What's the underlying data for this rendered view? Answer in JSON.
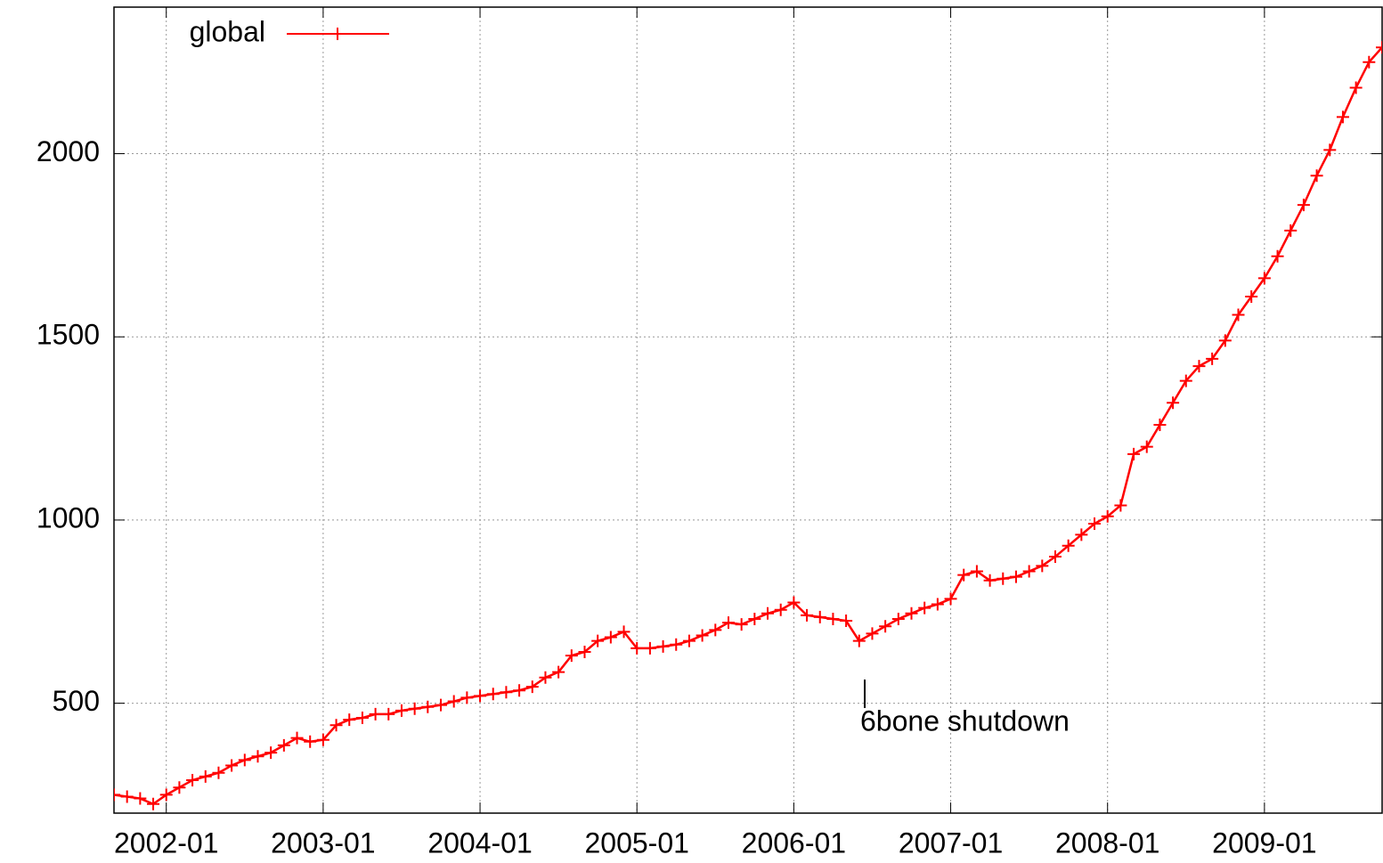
{
  "chart_data": {
    "type": "line",
    "annotation": "6bone shutdown",
    "x": [
      "2001-09",
      "2001-10",
      "2001-11",
      "2001-12",
      "2002-01",
      "2002-02",
      "2002-03",
      "2002-04",
      "2002-05",
      "2002-06",
      "2002-07",
      "2002-08",
      "2002-09",
      "2002-10",
      "2002-11",
      "2002-12",
      "2003-01",
      "2003-02",
      "2003-03",
      "2003-04",
      "2003-05",
      "2003-06",
      "2003-07",
      "2003-08",
      "2003-09",
      "2003-10",
      "2003-11",
      "2003-12",
      "2004-01",
      "2004-02",
      "2004-03",
      "2004-04",
      "2004-05",
      "2004-06",
      "2004-07",
      "2004-08",
      "2004-09",
      "2004-10",
      "2004-11",
      "2004-12",
      "2005-01",
      "2005-02",
      "2005-03",
      "2005-04",
      "2005-05",
      "2005-06",
      "2005-07",
      "2005-08",
      "2005-09",
      "2005-10",
      "2005-11",
      "2005-12",
      "2006-01",
      "2006-02",
      "2006-03",
      "2006-04",
      "2006-05",
      "2006-06",
      "2006-07",
      "2006-08",
      "2006-09",
      "2006-10",
      "2006-11",
      "2006-12",
      "2007-01",
      "2007-02",
      "2007-03",
      "2007-04",
      "2007-05",
      "2007-06",
      "2007-07",
      "2007-08",
      "2007-09",
      "2007-10",
      "2007-11",
      "2007-12",
      "2008-01",
      "2008-02",
      "2008-03",
      "2008-04",
      "2008-05",
      "2008-06",
      "2008-07",
      "2008-08",
      "2008-09",
      "2008-10",
      "2008-11",
      "2008-12",
      "2009-01",
      "2009-02",
      "2009-03",
      "2009-04",
      "2009-05",
      "2009-06",
      "2009-07",
      "2009-08",
      "2009-09",
      "2009-10"
    ],
    "series": [
      {
        "name": "global",
        "color": "#ff0000",
        "values": [
          250,
          245,
          240,
          225,
          250,
          270,
          290,
          300,
          310,
          330,
          345,
          355,
          365,
          385,
          405,
          395,
          400,
          440,
          455,
          460,
          470,
          470,
          480,
          485,
          490,
          495,
          505,
          515,
          520,
          525,
          530,
          535,
          545,
          570,
          585,
          630,
          640,
          670,
          680,
          695,
          650,
          650,
          655,
          660,
          670,
          685,
          700,
          720,
          715,
          730,
          745,
          755,
          775,
          740,
          735,
          730,
          725,
          670,
          690,
          710,
          730,
          745,
          760,
          770,
          785,
          850,
          860,
          835,
          840,
          845,
          860,
          875,
          900,
          930,
          960,
          990,
          1010,
          1040,
          1180,
          1200,
          1260,
          1320,
          1380,
          1420,
          1440,
          1490,
          1560,
          1610,
          1660,
          1720,
          1790,
          1860,
          1940,
          2010,
          2100,
          2180,
          2250,
          2290
        ]
      }
    ],
    "xlim": [
      "2001-09",
      "2009-10"
    ],
    "xticks": [
      "2002-01",
      "2003-01",
      "2004-01",
      "2005-01",
      "2006-01",
      "2007-01",
      "2008-01",
      "2009-01"
    ],
    "ylim": [
      200,
      2400
    ],
    "yticks": [
      500,
      1000,
      1500,
      2000
    ],
    "grid": true,
    "legend": "top-left"
  }
}
